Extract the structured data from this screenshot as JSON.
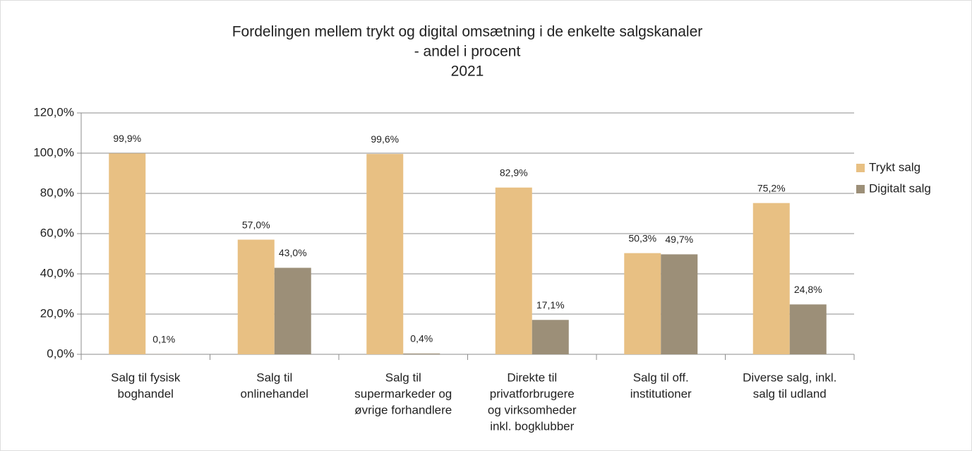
{
  "chart_data": {
    "type": "bar",
    "title": [
      "Fordelingen mellem trykt og digital omsætning i de enkelte salgskanaler",
      "- andel i procent",
      "2021"
    ],
    "categories": [
      [
        "Salg til fysisk",
        "boghandel"
      ],
      [
        "Salg til",
        "onlinehandel"
      ],
      [
        "Salg til",
        "supermarkeder og",
        "øvrige forhandlere"
      ],
      [
        "Direkte til",
        "privatforbrugere",
        "og virksomheder",
        "inkl. bogklubber"
      ],
      [
        "Salg til off.",
        "institutioner"
      ],
      [
        "Diverse salg, inkl.",
        "salg til udland"
      ]
    ],
    "series": [
      {
        "name": "Trykt salg",
        "color": "#e8c083",
        "values": [
          99.9,
          57.0,
          99.6,
          82.9,
          50.3,
          75.2
        ],
        "value_labels": [
          "99,9%",
          "57,0%",
          "99,6%",
          "82,9%",
          "50,3%",
          "75,2%"
        ]
      },
      {
        "name": "Digitalt salg",
        "color": "#9c8f78",
        "values": [
          0.1,
          43.0,
          0.4,
          17.1,
          49.7,
          24.8
        ],
        "value_labels": [
          "0,1%",
          "43,0%",
          "0,4%",
          "17,1%",
          "49,7%",
          "24,8%"
        ]
      }
    ],
    "ylim": [
      0,
      120
    ],
    "yticks": [
      {
        "value": 0,
        "label": "0,0%"
      },
      {
        "value": 20,
        "label": "20,0%"
      },
      {
        "value": 40,
        "label": "40,0%"
      },
      {
        "value": 60,
        "label": "60,0%"
      },
      {
        "value": 80,
        "label": "80,0%"
      },
      {
        "value": 100,
        "label": "100,0%"
      },
      {
        "value": 120,
        "label": "120,0%"
      }
    ],
    "grid": true,
    "legend": "right"
  }
}
